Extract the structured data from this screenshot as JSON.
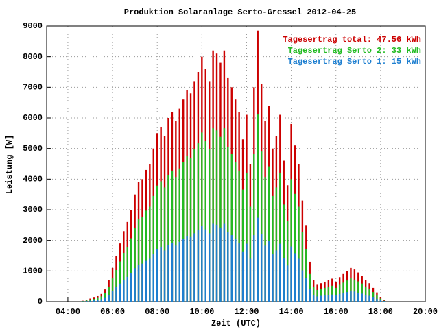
{
  "chart_data": {
    "type": "bar",
    "title": "Produktion Solaranlage Serto-Gressel 2012-04-25",
    "x_label": "Zeit (UTC)",
    "y_label": "Leistung [W]",
    "x": [
      280,
      290,
      300,
      310,
      320,
      330,
      340,
      350,
      360,
      370,
      380,
      390,
      400,
      410,
      420,
      430,
      440,
      450,
      460,
      470,
      480,
      490,
      500,
      510,
      520,
      530,
      540,
      550,
      560,
      570,
      580,
      590,
      600,
      610,
      620,
      630,
      640,
      650,
      660,
      670,
      680,
      690,
      700,
      710,
      720,
      730,
      740,
      750,
      760,
      770,
      780,
      790,
      800,
      810,
      820,
      830,
      840,
      850,
      860,
      870,
      880,
      890,
      900,
      910,
      920,
      930,
      940,
      950,
      960,
      970,
      980,
      990,
      1000,
      1010,
      1020,
      1030,
      1040,
      1050,
      1060,
      1070,
      1080,
      1090
    ],
    "series": [
      {
        "name": "Tagesertrag total: 47.56 kWh",
        "color": "#cc0000",
        "values": [
          30,
          60,
          100,
          130,
          180,
          250,
          400,
          700,
          1100,
          1500,
          1900,
          2300,
          2600,
          3000,
          3500,
          3900,
          4000,
          4300,
          4500,
          5000,
          5500,
          5700,
          5400,
          6000,
          6200,
          5900,
          6300,
          6600,
          6900,
          6800,
          7200,
          7500,
          8000,
          7600,
          7200,
          8200,
          8100,
          7800,
          8200,
          7300,
          7000,
          6600,
          6200,
          5300,
          6100,
          4500,
          7000,
          8850,
          7100,
          5900,
          6400,
          5000,
          5400,
          6100,
          4600,
          3800,
          5800,
          5100,
          4500,
          3300,
          2500,
          1300,
          700,
          550,
          600,
          650,
          700,
          750,
          650,
          800,
          900,
          1000,
          1100,
          1050,
          950,
          850,
          700,
          600,
          450,
          300,
          150,
          50
        ]
      },
      {
        "name": "Tagesertrag Serto 2: 33 kWh",
        "color": "#22bb22",
        "values": [
          20,
          40,
          70,
          90,
          120,
          170,
          280,
          480,
          760,
          1030,
          1310,
          1590,
          1790,
          2070,
          2410,
          2690,
          2760,
          2970,
          3100,
          3450,
          3790,
          3930,
          3730,
          4140,
          4280,
          4070,
          4350,
          4550,
          4760,
          4690,
          4970,
          5170,
          5520,
          5240,
          4970,
          5660,
          5590,
          5380,
          5660,
          5040,
          4830,
          4550,
          4280,
          3660,
          4210,
          3100,
          4830,
          6110,
          4900,
          4070,
          4420,
          3450,
          3730,
          4210,
          3170,
          2620,
          4000,
          3520,
          3100,
          2280,
          1720,
          900,
          480,
          380,
          410,
          450,
          480,
          520,
          450,
          550,
          620,
          690,
          760,
          720,
          660,
          590,
          480,
          410,
          310,
          210,
          100,
          30
        ]
      },
      {
        "name": "Tagesertrag Serto 1: 15 kWh",
        "color": "#1e7fd0",
        "values": [
          10,
          20,
          30,
          40,
          60,
          80,
          120,
          220,
          340,
          470,
          590,
          710,
          810,
          930,
          1090,
          1210,
          1240,
          1330,
          1400,
          1550,
          1710,
          1770,
          1670,
          1860,
          1920,
          1830,
          1950,
          2050,
          2140,
          2110,
          2230,
          2330,
          2480,
          2360,
          2230,
          2540,
          2510,
          2420,
          2540,
          2260,
          2170,
          2050,
          1920,
          1640,
          1890,
          1400,
          2170,
          2740,
          2200,
          1830,
          1980,
          1550,
          1670,
          1890,
          1430,
          1180,
          1800,
          1580,
          1400,
          1020,
          780,
          400,
          220,
          170,
          190,
          200,
          220,
          230,
          200,
          250,
          280,
          310,
          340,
          330,
          290,
          260,
          220,
          190,
          140,
          90,
          50,
          20
        ]
      }
    ],
    "xlim": [
      183,
      1200
    ],
    "xticks": [
      {
        "value": 240,
        "label": "04:00"
      },
      {
        "value": 360,
        "label": "06:00"
      },
      {
        "value": 480,
        "label": "08:00"
      },
      {
        "value": 600,
        "label": "10:00"
      },
      {
        "value": 720,
        "label": "12:00"
      },
      {
        "value": 840,
        "label": "14:00"
      },
      {
        "value": 960,
        "label": "16:00"
      },
      {
        "value": 1080,
        "label": "18:00"
      },
      {
        "value": 1200,
        "label": "20:00"
      }
    ],
    "ylim": [
      0,
      9000
    ],
    "yticks": [
      0,
      1000,
      2000,
      3000,
      4000,
      5000,
      6000,
      7000,
      8000,
      9000
    ],
    "grid": true,
    "legend": "top-right"
  }
}
